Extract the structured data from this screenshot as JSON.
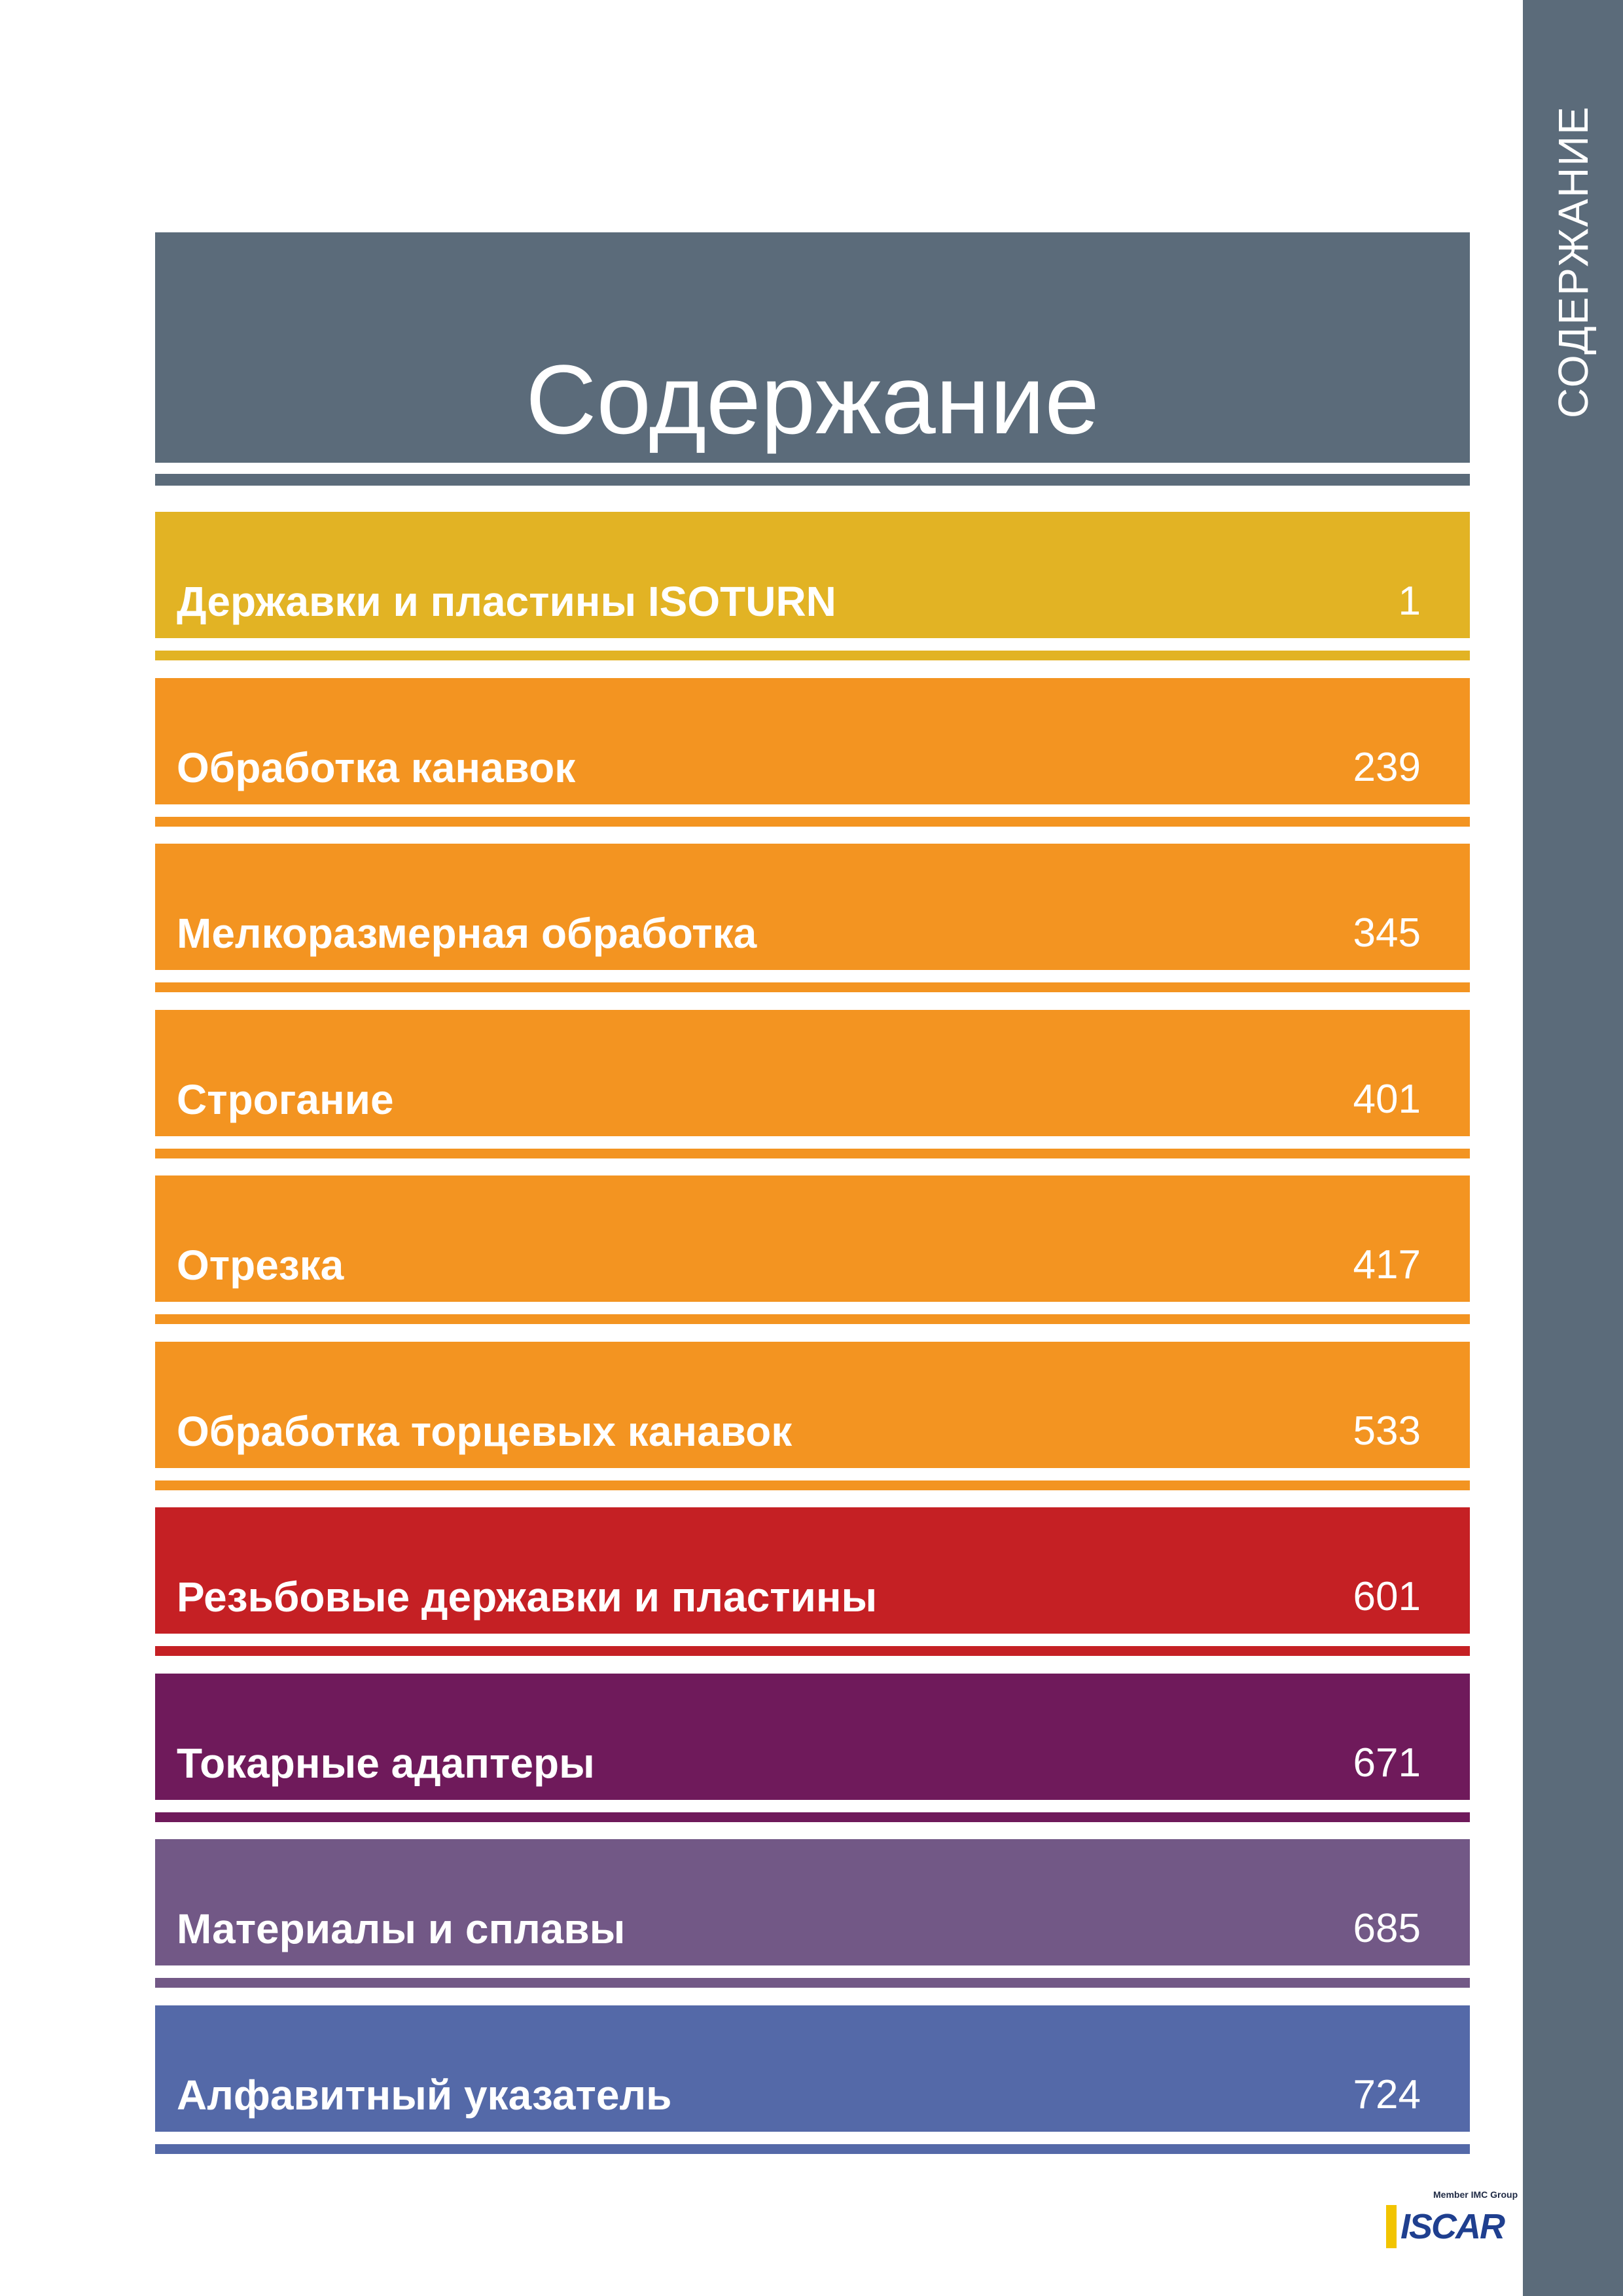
{
  "sidebar": {
    "label": "СОДЕРЖАНИЕ"
  },
  "header": {
    "title": "Содержание"
  },
  "colors": {
    "slate": "#5b6b7a",
    "yellow": "#e2b324",
    "orange": "#f39421",
    "red": "#c52024",
    "plum": "#6f1a5b",
    "lavender": "#725886",
    "blue": "#5469a8"
  },
  "toc": [
    {
      "label": "Державки и пластины ISOTURN",
      "page": "1",
      "color": "#e2b324"
    },
    {
      "label": "Обработка канавок",
      "page": "239",
      "color": "#f39421"
    },
    {
      "label": "Мелкоразмерная обработка",
      "page": "345",
      "color": "#f39421"
    },
    {
      "label": "Строгание",
      "page": "401",
      "color": "#f39421"
    },
    {
      "label": "Отрезка",
      "page": "417",
      "color": "#f39421"
    },
    {
      "label": "Обработка торцевых канавок",
      "page": "533",
      "color": "#f39421"
    },
    {
      "label": "Резьбовые державки и пластины",
      "page": "601",
      "color": "#c52024"
    },
    {
      "label": "Токарные адаптеры",
      "page": "671",
      "color": "#6f1a5b"
    },
    {
      "label": "Материалы и сплавы",
      "page": "685",
      "color": "#725886"
    },
    {
      "label": "Алфавитный указатель",
      "page": "724",
      "color": "#5469a8"
    }
  ],
  "logo": {
    "tagline": "Member IMC Group",
    "wordmark": "ISCAR"
  }
}
